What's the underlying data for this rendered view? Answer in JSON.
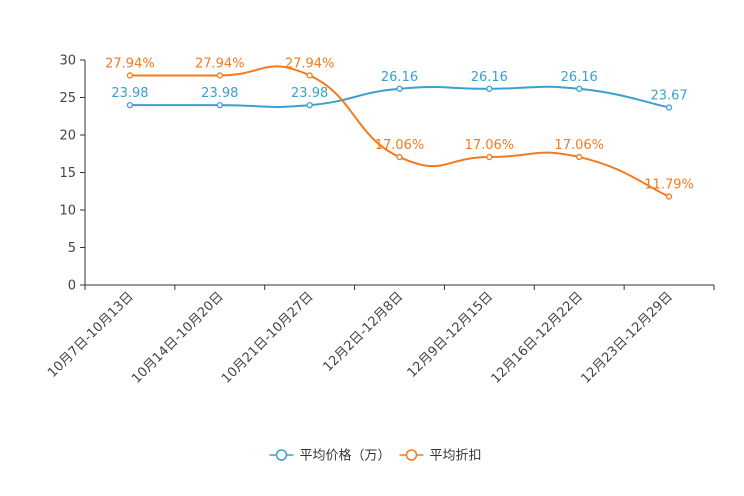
{
  "chart_data": {
    "type": "line",
    "title": "",
    "xlabel": "",
    "ylabel": "",
    "ylim": [
      0,
      30
    ],
    "yticks": [
      0,
      5,
      10,
      15,
      20,
      25,
      30
    ],
    "categories": [
      "10月7日-10月13日",
      "10月14日-10月20日",
      "10月21日-10月27日",
      "12月2日-12月8日",
      "12月9日-12月15日",
      "12月16日-12月22日",
      "12月23日-12月29日"
    ],
    "series": [
      {
        "name": "平均价格（万）",
        "color": "#3ba0d0",
        "values": [
          23.98,
          23.98,
          23.98,
          26.16,
          26.16,
          26.16,
          23.67
        ],
        "labels": [
          "23.98",
          "23.98",
          "23.98",
          "26.16",
          "26.16",
          "26.16",
          "23.67"
        ]
      },
      {
        "name": "平均折扣",
        "color": "#f57a1f",
        "values": [
          27.94,
          27.94,
          27.94,
          17.06,
          17.06,
          17.06,
          11.79
        ],
        "labels": [
          "27.94%",
          "27.94%",
          "27.94%",
          "17.06%",
          "17.06%",
          "17.06%",
          "11.79%"
        ]
      }
    ],
    "legend_position": "bottom-center"
  }
}
